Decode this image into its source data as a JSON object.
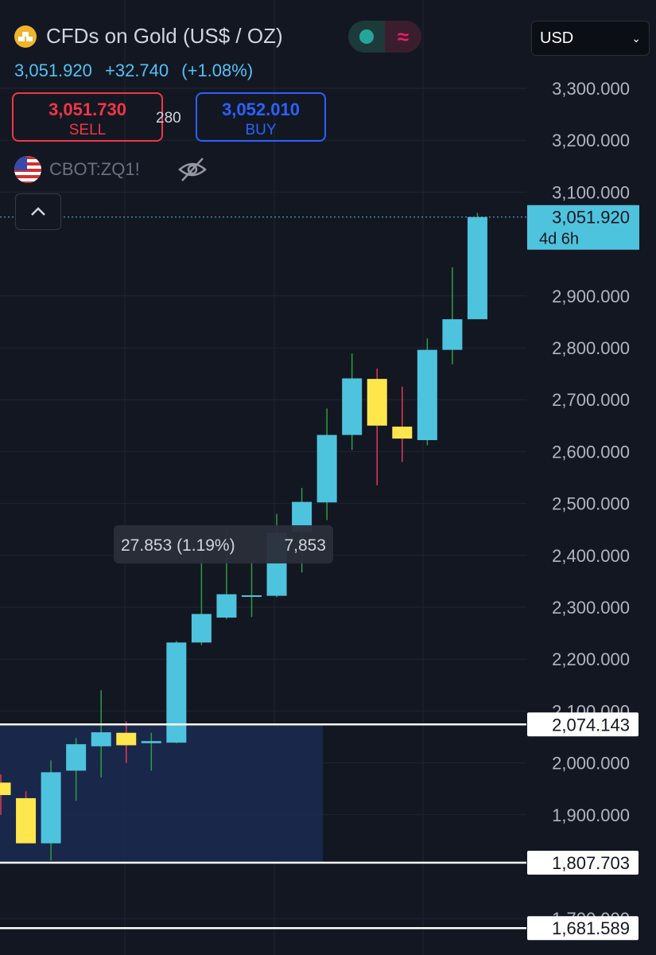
{
  "header": {
    "title": "CFDs on Gold (US$ / OZ)",
    "last_price": "3,051.920",
    "change": "+32.740",
    "change_pct": "(+1.08%)",
    "sell_price": "3,051.730",
    "sell_label": "SELL",
    "spread": "280",
    "buy_price": "3,052.010",
    "buy_label": "BUY",
    "symbol": "CBOT:ZQ1!",
    "currency": "USD"
  },
  "colors": {
    "background": "#131722",
    "up_candle": "#4ec3dd",
    "down_candle": "#fde74c",
    "up_wick": "#2e9e3e",
    "down_wick": "#e53950",
    "sell": "#f23645",
    "buy": "#2962ff",
    "zone_fill": "#1b2a52"
  },
  "chart_data": {
    "type": "candlestick",
    "title": "CFDs on Gold (US$ / OZ)",
    "ylim": [
      1650,
      3350
    ],
    "y_ticks": [
      {
        "value": 3300,
        "label": "3,300.000"
      },
      {
        "value": 3200,
        "label": "3,200.000"
      },
      {
        "value": 3100,
        "label": "3,100.000"
      },
      {
        "value": 2900,
        "label": "2,900.000"
      },
      {
        "value": 2800,
        "label": "2,800.000"
      },
      {
        "value": 2700,
        "label": "2,700.000"
      },
      {
        "value": 2600,
        "label": "2,600.000"
      },
      {
        "value": 2500,
        "label": "2,500.000"
      },
      {
        "value": 2400,
        "label": "2,400.000"
      },
      {
        "value": 2300,
        "label": "2,300.000"
      },
      {
        "value": 2200,
        "label": "2,200.000"
      },
      {
        "value": 2100,
        "label": "2,100.000"
      },
      {
        "value": 2000,
        "label": "2,000.000"
      },
      {
        "value": 1900,
        "label": "1,900.000"
      },
      {
        "value": 1700,
        "label": "1,700.000"
      }
    ],
    "candles": [
      {
        "open": 1962,
        "high": 1978,
        "low": 1900,
        "close": 1938
      },
      {
        "open": 1932,
        "high": 1945,
        "low": 1860,
        "close": 1845
      },
      {
        "open": 1845,
        "high": 2005,
        "low": 1812,
        "close": 1982
      },
      {
        "open": 1985,
        "high": 2048,
        "low": 1927,
        "close": 2036
      },
      {
        "open": 2032,
        "high": 2140,
        "low": 1972,
        "close": 2059
      },
      {
        "open": 2058,
        "high": 2080,
        "low": 2000,
        "close": 2034
      },
      {
        "open": 2038,
        "high": 2058,
        "low": 1985,
        "close": 2042
      },
      {
        "open": 2039,
        "high": 2235,
        "low": 2038,
        "close": 2232
      },
      {
        "open": 2232,
        "high": 2432,
        "low": 2227,
        "close": 2287
      },
      {
        "open": 2280,
        "high": 2450,
        "low": 2277,
        "close": 2325
      },
      {
        "open": 2322,
        "high": 2388,
        "low": 2281,
        "close": 2323
      },
      {
        "open": 2322,
        "high": 2480,
        "low": 2319,
        "close": 2443
      },
      {
        "open": 2445,
        "high": 2530,
        "low": 2367,
        "close": 2503
      },
      {
        "open": 2502,
        "high": 2683,
        "low": 2468,
        "close": 2632
      },
      {
        "open": 2632,
        "high": 2789,
        "low": 2603,
        "close": 2741
      },
      {
        "open": 2740,
        "high": 2760,
        "low": 2535,
        "close": 2650
      },
      {
        "open": 2648,
        "high": 2725,
        "low": 2580,
        "close": 2625
      },
      {
        "open": 2622,
        "high": 2818,
        "low": 2612,
        "close": 2796
      },
      {
        "open": 2796,
        "high": 2955,
        "low": 2768,
        "close": 2855
      },
      {
        "open": 2855,
        "high": 3060,
        "low": 2855,
        "close": 3051.92
      }
    ],
    "last_price_label": {
      "price": "3,051.920",
      "countdown": "4d 6h"
    },
    "horizontal_lines": [
      {
        "value": 2074.143,
        "label": "2,074.143"
      },
      {
        "value": 1807.703,
        "label": "1,807.703"
      },
      {
        "value": 1681.589,
        "label": "1,681.589"
      }
    ],
    "zone": {
      "from_price": 1807.703,
      "to_price": 2074.143
    },
    "measure_tooltip": {
      "text": "27.853 (1.19%)",
      "overlap_text": "7,853"
    }
  }
}
